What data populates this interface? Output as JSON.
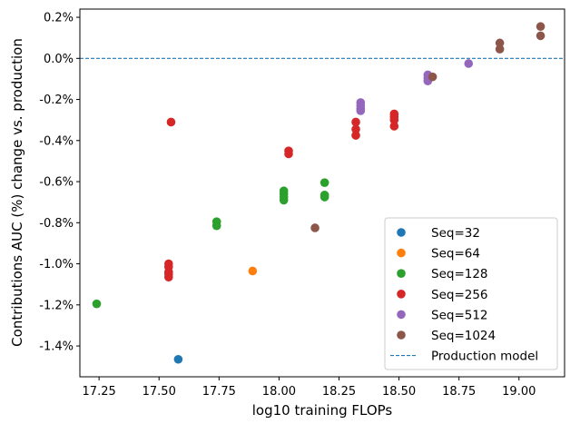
{
  "chart_data": {
    "type": "scatter",
    "xlabel": "log10 training FLOPs",
    "ylabel": "Contributions AUC (%) change vs. production",
    "xlim": [
      17.17,
      19.19
    ],
    "ylim": [
      -1.55,
      0.24
    ],
    "x_ticks": [
      17.25,
      17.5,
      17.75,
      18.0,
      18.25,
      18.5,
      18.75,
      19.0
    ],
    "x_tick_labels": [
      "17.25",
      "17.50",
      "17.75",
      "18.00",
      "18.25",
      "18.50",
      "18.75",
      "19.00"
    ],
    "y_ticks": [
      0.2,
      0.0,
      -0.2,
      -0.4,
      -0.6,
      -0.8,
      -1.0,
      -1.2,
      -1.4
    ],
    "y_tick_labels": [
      "0.2%",
      "0.0%",
      "-0.2%",
      "-0.4%",
      "-0.6%",
      "-0.8%",
      "-1.0%",
      "-1.2%",
      "-1.4%"
    ],
    "legend_position": "lower-right",
    "series": [
      {
        "name": "Seq=32",
        "color": "#1f77b4",
        "points": [
          [
            17.58,
            -1.465
          ]
        ]
      },
      {
        "name": "Seq=64",
        "color": "#ff7f0e",
        "points": [
          [
            17.89,
            -1.035
          ]
        ]
      },
      {
        "name": "Seq=128",
        "color": "#2ca02c",
        "points": [
          [
            17.24,
            -1.195
          ],
          [
            17.74,
            -0.795
          ],
          [
            17.74,
            -0.815
          ],
          [
            18.02,
            -0.645
          ],
          [
            18.02,
            -0.66
          ],
          [
            18.02,
            -0.675
          ],
          [
            18.02,
            -0.69
          ],
          [
            18.19,
            -0.605
          ],
          [
            18.19,
            -0.665
          ],
          [
            18.19,
            -0.675
          ]
        ]
      },
      {
        "name": "Seq=256",
        "color": "#d62728",
        "points": [
          [
            17.55,
            -0.31
          ],
          [
            17.54,
            -1.0
          ],
          [
            17.54,
            -1.015
          ],
          [
            17.54,
            -1.04
          ],
          [
            17.54,
            -1.05
          ],
          [
            17.54,
            -1.065
          ],
          [
            18.04,
            -0.45
          ],
          [
            18.04,
            -0.465
          ],
          [
            18.32,
            -0.31
          ],
          [
            18.32,
            -0.345
          ],
          [
            18.32,
            -0.375
          ],
          [
            18.48,
            -0.27
          ],
          [
            18.48,
            -0.285
          ],
          [
            18.48,
            -0.3
          ],
          [
            18.48,
            -0.33
          ]
        ]
      },
      {
        "name": "Seq=512",
        "color": "#9467bd",
        "points": [
          [
            18.34,
            -0.215
          ],
          [
            18.34,
            -0.23
          ],
          [
            18.34,
            -0.245
          ],
          [
            18.34,
            -0.255
          ],
          [
            18.62,
            -0.08
          ],
          [
            18.62,
            -0.095
          ],
          [
            18.62,
            -0.11
          ],
          [
            18.79,
            -0.025
          ]
        ]
      },
      {
        "name": "Seq=1024",
        "color": "#8c564b",
        "points": [
          [
            18.15,
            -0.825
          ],
          [
            18.64,
            -0.09
          ],
          [
            18.92,
            0.075
          ],
          [
            18.92,
            0.045
          ],
          [
            19.09,
            0.155
          ],
          [
            19.09,
            0.11
          ]
        ]
      }
    ],
    "reference_line": {
      "name": "Production model",
      "y": 0.0,
      "color": "#1f77b4",
      "style": "dashed"
    }
  }
}
